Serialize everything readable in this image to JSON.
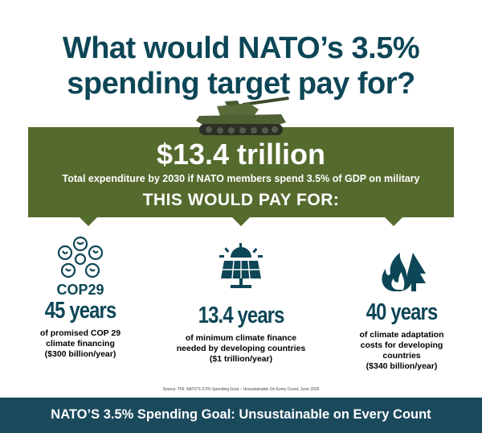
{
  "title_line1": "What would NATO’s 3.5%",
  "title_line2": "spending target pay for?",
  "banner": {
    "amount": "$13.4 trillion",
    "subtext": "Total expenditure by 2030 if NATO members spend 3.5% of GDP on military",
    "pay_for": "THIS WOULD PAY FOR:"
  },
  "items": [
    {
      "icon": "cop29-logo-icon",
      "label": "COP29",
      "years": "45 years",
      "desc": [
        "of promised COP 29",
        "climate financing",
        "($300 billion/year)"
      ]
    },
    {
      "icon": "solar-panel-icon",
      "years": "13.4 years",
      "desc": [
        "of minimum climate finance",
        "needed by developing countries",
        "($1 trillion/year)"
      ]
    },
    {
      "icon": "wildfire-trees-icon",
      "years": "40 years",
      "desc": [
        "of climate adaptation",
        "costs for developing",
        "countries",
        "($340 billion/year)"
      ]
    }
  ],
  "source": "Source: TNI, NATO’S 3.5% Spending Goal – Unsustainable On Every Count, June 2025",
  "footer": "NATO’S 3.5% Spending Goal: Unsustainable on Every Count",
  "colors": {
    "title": "#0d4656",
    "banner": "#556a2d",
    "footer": "#1a4a5c"
  }
}
